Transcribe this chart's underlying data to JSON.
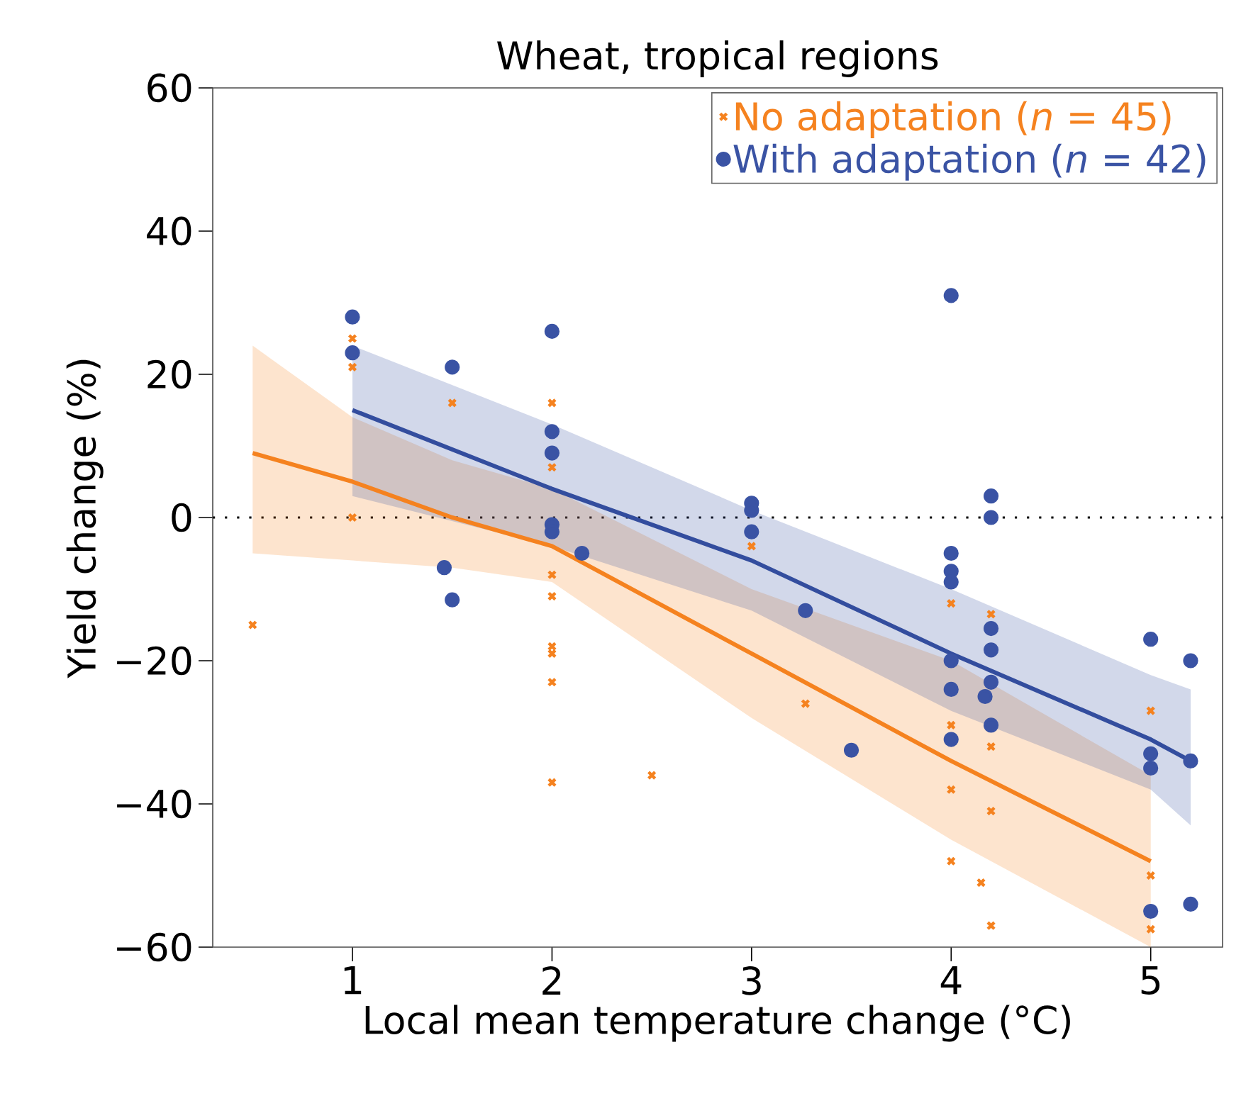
{
  "chart_data": {
    "type": "scatter",
    "title": "Wheat, tropical regions",
    "xlabel": "Local mean temperature change (°C)",
    "ylabel": "Yield change (%)",
    "xlim": [
      0.3,
      5.36
    ],
    "ylim": [
      -60,
      60
    ],
    "xticks": [
      1,
      2,
      3,
      4,
      5
    ],
    "yticks": [
      {
        "value": -60,
        "label": "−60"
      },
      {
        "value": -40,
        "label": "−40"
      },
      {
        "value": -20,
        "label": "−20"
      },
      0,
      20,
      40,
      60
    ],
    "legend": "top right",
    "grid": false,
    "ref_lines": [
      {
        "axis": "y",
        "value": 0,
        "line_style": "dotted",
        "color": "#000000"
      }
    ],
    "series": [
      {
        "type": "line",
        "color": "#f5821f",
        "marker": "none",
        "x": [
          0.5,
          1,
          1.5,
          2,
          3,
          4,
          5
        ],
        "values": [
          9,
          5,
          0,
          -4,
          -19,
          -34,
          -48
        ],
        "lower": [
          -5,
          -6,
          -7,
          -9,
          -28,
          -45,
          -60
        ],
        "upper": [
          24,
          14,
          8,
          4,
          -10,
          -20,
          -36
        ]
      },
      {
        "type": "line",
        "color": "#334d9e",
        "marker": "none",
        "x": [
          1,
          2,
          3,
          4,
          5,
          5.2
        ],
        "values": [
          15,
          4,
          -6,
          -19,
          -31,
          -34
        ],
        "lower": [
          3,
          -4,
          -13,
          -27,
          -38,
          -43
        ],
        "upper": [
          24,
          13,
          1,
          -10,
          -22,
          -24
        ]
      },
      {
        "name": "No adaptation (*n* = 45)",
        "color": "#f5821f",
        "marker": "cross",
        "x": [
          0.5,
          1,
          1,
          1,
          1.5,
          2,
          2,
          2,
          2,
          2,
          2,
          2,
          2,
          2.5,
          3,
          3.27,
          4,
          4,
          4,
          4,
          4.2,
          4.2,
          4.2,
          4.15,
          4.2,
          5,
          5,
          5
        ],
        "values": [
          -15,
          25,
          21,
          0,
          16,
          16,
          7,
          -8,
          -11,
          -18,
          -19,
          -23,
          -37,
          -36,
          -4,
          -26,
          -12,
          -29,
          -38,
          -48,
          -13.5,
          -32,
          -41,
          -51,
          -57,
          -27,
          -50,
          -57.5
        ]
      },
      {
        "name": "With adaptation (*n* = 42)",
        "color": "#3a53a4",
        "marker": "circle",
        "x": [
          1,
          1,
          1.5,
          1.46,
          1.5,
          2,
          2,
          2,
          2,
          2,
          2.15,
          3,
          3,
          3,
          3.27,
          3.5,
          4,
          4,
          4,
          4,
          4,
          4,
          4,
          4.2,
          4.2,
          4.2,
          4.2,
          4.2,
          4.17,
          4.2,
          5,
          5,
          5,
          5,
          5.2,
          5.2,
          5.2
        ],
        "values": [
          28,
          23,
          21,
          -7,
          -11.5,
          26,
          12,
          9,
          -1,
          -2,
          -5,
          2,
          1,
          -2,
          -13,
          -32.5,
          31,
          -5,
          -7.5,
          -9,
          -20,
          -24,
          -31,
          3,
          0,
          -15.5,
          -18.5,
          -23,
          -25,
          -29,
          -17,
          -33,
          -35,
          -55,
          -20,
          -34,
          -54
        ]
      }
    ]
  }
}
